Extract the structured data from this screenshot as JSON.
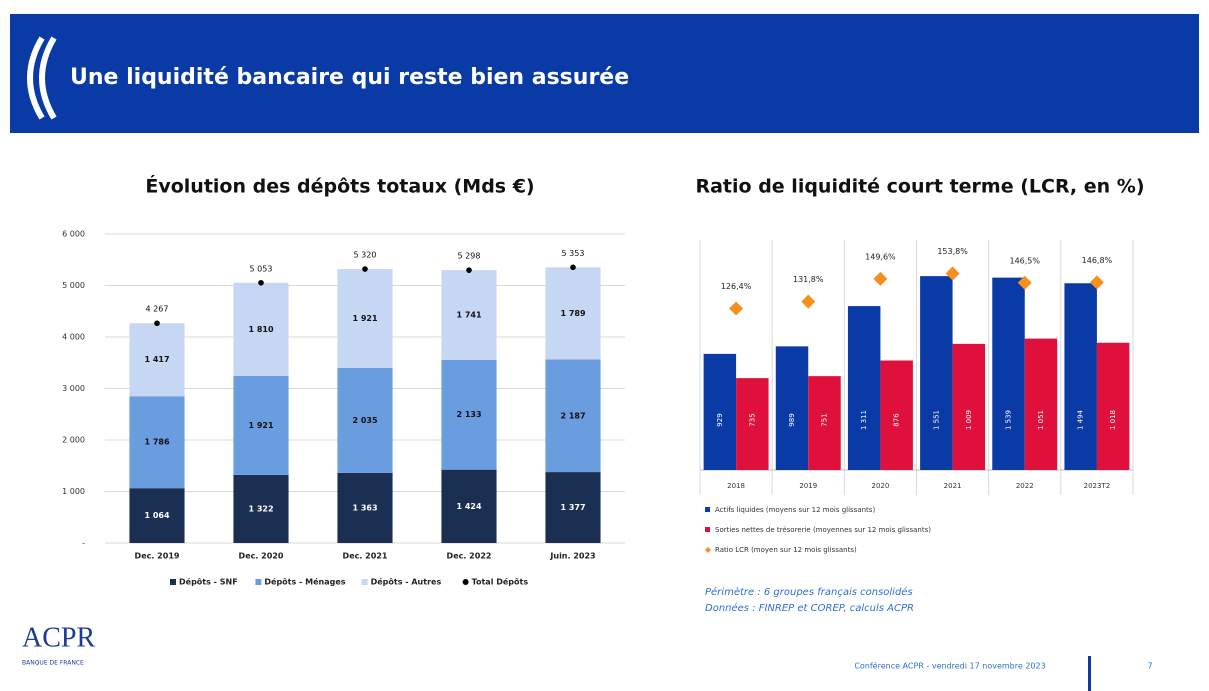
{
  "header": {
    "title": "Une liquidité bancaire qui reste bien assurée"
  },
  "chart_data": [
    {
      "type": "bar",
      "stacked": true,
      "title": "Évolution des dépôts totaux (Mds €)",
      "categories": [
        "Dec. 2019",
        "Dec. 2020",
        "Dec. 2021",
        "Dec. 2022",
        "Juin. 2023"
      ],
      "series": [
        {
          "name": "Dépôts - SNF",
          "color": "#1b2f52",
          "values": [
            1064,
            1322,
            1363,
            1424,
            1377
          ],
          "value_labels": [
            "1 064",
            "1 322",
            "1 363",
            "1 424",
            "1 377"
          ]
        },
        {
          "name": "Dépôts - Ménages",
          "color": "#6a9de0",
          "values": [
            1786,
            1921,
            2035,
            2133,
            2187
          ],
          "value_labels": [
            "1 786",
            "1 921",
            "2 035",
            "2 133",
            "2 187"
          ]
        },
        {
          "name": "Dépôts - Autres",
          "color": "#c5d7f2",
          "values": [
            1417,
            1810,
            1921,
            1741,
            1789
          ],
          "value_labels": [
            "1 417",
            "1 810",
            "1 921",
            "1 741",
            "1 789"
          ]
        },
        {
          "name": "Total Dépôts",
          "type": "scatter",
          "color": "#000000",
          "values": [
            4267,
            5053,
            5320,
            5298,
            5353
          ],
          "value_labels": [
            "4 267",
            "5 053",
            "5 320",
            "5 298",
            "5 353"
          ]
        }
      ],
      "ylim": [
        0,
        6000
      ],
      "yticks": [
        {
          "value": 0,
          "label": "-"
        },
        {
          "value": 1000,
          "label": "1 000"
        },
        {
          "value": 2000,
          "label": "2 000"
        },
        {
          "value": 3000,
          "label": "3 000"
        },
        {
          "value": 4000,
          "label": "4 000"
        },
        {
          "value": 5000,
          "label": "5 000"
        },
        {
          "value": 6000,
          "label": "6 000"
        }
      ],
      "grid": true,
      "legend": "bottom"
    },
    {
      "type": "bar",
      "title": "Ratio de liquidité court terme (LCR, en %)",
      "categories": [
        "2018",
        "2019",
        "2020",
        "2021",
        "2022",
        "2023T2"
      ],
      "series": [
        {
          "name": "Actifs liquides (moyens sur 12 mois glissants)",
          "color": "#0a3aa6",
          "values": [
            929,
            989,
            1311,
            1551,
            1539,
            1494
          ],
          "value_labels": [
            "929",
            "989",
            "1 311",
            "1 551",
            "1 539",
            "1 494"
          ]
        },
        {
          "name": "Sorties nettes de trésorerie (moyennes sur 12 mois glissants)",
          "color": "#e0103c",
          "values": [
            735,
            751,
            876,
            1009,
            1051,
            1018
          ],
          "value_labels": [
            "735",
            "751",
            "876",
            "1 009",
            "1 051",
            "1 018"
          ]
        },
        {
          "name": "Ratio LCR (moyen sur 12 mois glissants)",
          "type": "scatter",
          "axis": "y2",
          "color": "#f5901e",
          "values": [
            126.4,
            131.8,
            149.6,
            153.8,
            146.5,
            146.8
          ],
          "value_labels": [
            "126,4%",
            "131,8%",
            "149,6%",
            "153,8%",
            "146,5%",
            "146,8%"
          ]
        }
      ],
      "ylim": [
        0,
        1840
      ],
      "y2lim": [
        0,
        180
      ],
      "legend": "bottom"
    }
  ],
  "notes": [
    "Périmètre : 6 groupes français consolidés",
    "Données : FINREP et COREP, calculs ACPR"
  ],
  "logo": {
    "text": "ACPR",
    "subtext": "BANQUE DE FRANCE"
  },
  "footer": {
    "text": "Conférence ACPR - vendredi 17 novembre 2023",
    "page": "7"
  }
}
